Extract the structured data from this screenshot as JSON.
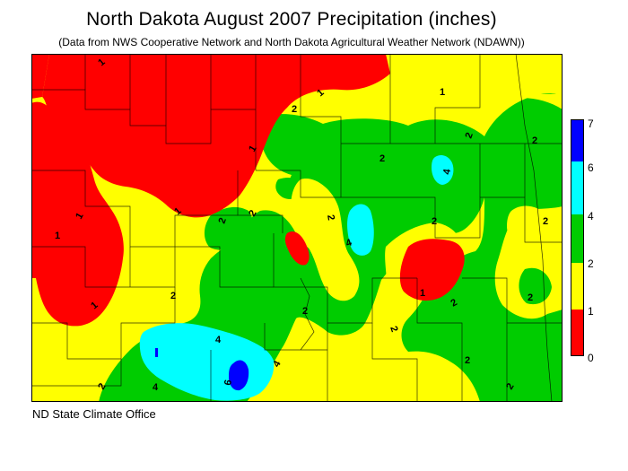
{
  "title": "North Dakota August 2007 Precipitation (inches)",
  "subtitle": "(Data from NWS Cooperative Network and North Dakota Agricultural Weather Network (NDAWN))",
  "credit": "ND State Climate Office",
  "legend": {
    "bins": [
      {
        "label": "0",
        "min": 0,
        "max": 1,
        "color": "#ff0000"
      },
      {
        "label": "1",
        "min": 1,
        "max": 2,
        "color": "#ffff00"
      },
      {
        "label": "2",
        "min": 2,
        "max": 4,
        "color": "#00cc00"
      },
      {
        "label": "4",
        "min": 4,
        "max": 6,
        "color": "#00ffff"
      },
      {
        "label": "6",
        "min": 6,
        "max": 7,
        "color": "#0000ff"
      },
      {
        "label": "7"
      }
    ]
  },
  "contour_labels": [
    "1",
    "2",
    "4",
    "6"
  ],
  "colors": {
    "red": "#ff0000",
    "yellow": "#ffff00",
    "green": "#00cc00",
    "cyan": "#00ffff",
    "blue": "#0000ff"
  }
}
